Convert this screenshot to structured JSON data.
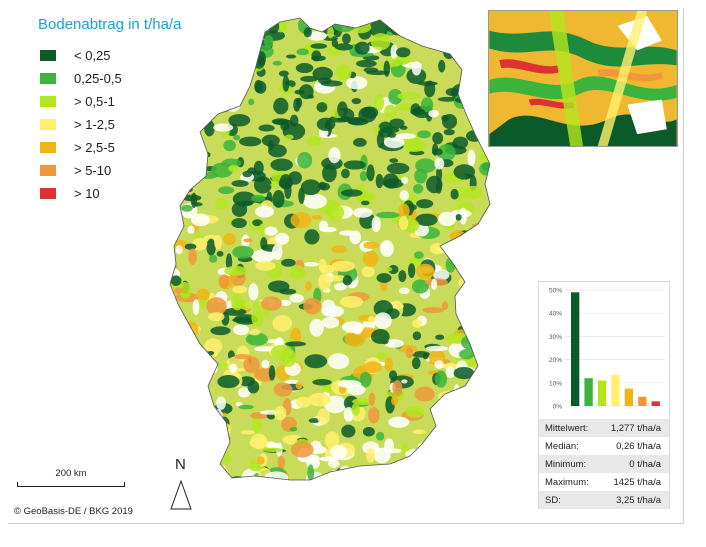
{
  "legend": {
    "title": "Bodenabtrag in t/ha/a",
    "items": [
      {
        "label": "< 0,25",
        "color": "#0b5a2a"
      },
      {
        "label": "0,25-0,5",
        "color": "#3cb43c"
      },
      {
        "label": "> 0,5-1",
        "color": "#b4e61e"
      },
      {
        "label": "> 1-2,5",
        "color": "#fff06e"
      },
      {
        "label": "> 2,5-5",
        "color": "#f0b414"
      },
      {
        "label": "> 5-10",
        "color": "#f0963c"
      },
      {
        "label": "> 10",
        "color": "#dc3232"
      }
    ]
  },
  "chart_data": {
    "type": "bar",
    "categories": [
      "< 0,25",
      "0,25-0,5",
      "> 0,5-1",
      "> 1-2,5",
      "> 2,5-5",
      "> 5-10",
      "> 10"
    ],
    "values": [
      49,
      12,
      11,
      13.5,
      7.5,
      4,
      2
    ],
    "colors": [
      "#0b5a2a",
      "#3cb43c",
      "#b4e61e",
      "#fff06e",
      "#f0b414",
      "#f0963c",
      "#dc3232"
    ],
    "yticks": [
      "0%",
      "10%",
      "20%",
      "30%",
      "40%",
      "50%"
    ],
    "ylim": [
      0,
      50
    ]
  },
  "stats": [
    {
      "label": "Mittelwert:",
      "value": "1,277 t/ha/a"
    },
    {
      "label": "Median:",
      "value": "0,26 t/ha/a"
    },
    {
      "label": "Minimum:",
      "value": "0 t/ha/a"
    },
    {
      "label": "Maximum:",
      "value": "1425 t/ha/a"
    },
    {
      "label": "SD:",
      "value": "3,25 t/ha/a"
    }
  ],
  "scalebar": {
    "label": "200 km"
  },
  "north": {
    "label": "N"
  },
  "copyright": "© GeoBasis-DE / BKG 2019"
}
